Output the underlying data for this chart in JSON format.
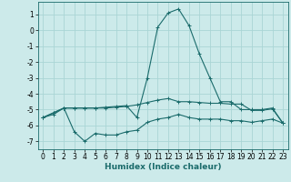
{
  "xlabel": "Humidex (Indice chaleur)",
  "xlim": [
    -0.5,
    23.5
  ],
  "ylim": [
    -7.5,
    1.8
  ],
  "yticks": [
    1,
    0,
    -1,
    -2,
    -3,
    -4,
    -5,
    -6,
    -7
  ],
  "xticks": [
    0,
    1,
    2,
    3,
    4,
    5,
    6,
    7,
    8,
    9,
    10,
    11,
    12,
    13,
    14,
    15,
    16,
    17,
    18,
    19,
    20,
    21,
    22,
    23
  ],
  "bg_color": "#cceaea",
  "grid_color": "#aad5d5",
  "line_color": "#1a6b6b",
  "series1_x": [
    0,
    1,
    2,
    3,
    4,
    5,
    6,
    7,
    8,
    9,
    10,
    11,
    12,
    13,
    14,
    15,
    16,
    17,
    18,
    19,
    20,
    21,
    22,
    23
  ],
  "series1_y": [
    -5.5,
    -5.3,
    -4.9,
    -6.4,
    -7.0,
    -6.5,
    -6.6,
    -6.6,
    -6.4,
    -6.3,
    -5.8,
    -5.6,
    -5.5,
    -5.3,
    -5.5,
    -5.6,
    -5.6,
    -5.6,
    -5.7,
    -5.7,
    -5.8,
    -5.7,
    -5.6,
    -5.85
  ],
  "series2_x": [
    0,
    1,
    2,
    3,
    4,
    5,
    6,
    7,
    8,
    9,
    10,
    11,
    12,
    13,
    14,
    15,
    16,
    17,
    18,
    19,
    20,
    21,
    22,
    23
  ],
  "series2_y": [
    -5.5,
    -5.2,
    -4.9,
    -4.9,
    -4.9,
    -4.9,
    -4.9,
    -4.85,
    -4.8,
    -4.7,
    -4.55,
    -4.4,
    -4.3,
    -4.5,
    -4.5,
    -4.55,
    -4.6,
    -4.6,
    -4.65,
    -4.65,
    -5.05,
    -5.05,
    -4.95,
    -5.85
  ],
  "series3_x": [
    0,
    1,
    2,
    3,
    4,
    5,
    6,
    7,
    8,
    9,
    10,
    11,
    12,
    13,
    14,
    15,
    16,
    17,
    18,
    19,
    20,
    21,
    22,
    23
  ],
  "series3_y": [
    -5.5,
    -5.2,
    -4.9,
    -4.9,
    -4.9,
    -4.9,
    -4.85,
    -4.8,
    -4.75,
    -5.5,
    -3.0,
    0.2,
    1.1,
    1.35,
    0.3,
    -1.5,
    -3.0,
    -4.5,
    -4.5,
    -5.0,
    -5.0,
    -5.0,
    -4.9,
    -5.85
  ]
}
